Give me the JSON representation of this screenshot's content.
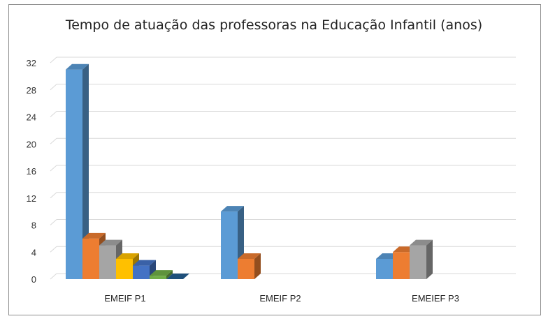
{
  "chart_data": {
    "type": "bar",
    "title": "Tempo de atuação das professoras na Educação Infantil (anos)",
    "xlabel": "",
    "ylabel": "",
    "ylim": [
      0,
      32
    ],
    "yticks": [
      0,
      4,
      8,
      12,
      16,
      20,
      24,
      28,
      32
    ],
    "grid": true,
    "legend": "none",
    "three_d": true,
    "categories": [
      "EMEIF P1",
      "EMEIF P2",
      "EMEIEF P3"
    ],
    "series": [
      {
        "color": "#5B9BD5",
        "values": [
          31,
          10,
          3
        ]
      },
      {
        "color": "#ED7D31",
        "values": [
          6,
          3,
          4
        ]
      },
      {
        "color": "#A5A5A5",
        "values": [
          5,
          null,
          5
        ]
      },
      {
        "color": "#FFC000",
        "values": [
          3,
          null,
          null
        ]
      },
      {
        "color": "#4472C4",
        "values": [
          2,
          null,
          null
        ]
      },
      {
        "color": "#70AD47",
        "values": [
          0.5,
          null,
          null
        ]
      },
      {
        "color": "#255E91",
        "values": [
          0,
          null,
          null
        ]
      }
    ]
  }
}
